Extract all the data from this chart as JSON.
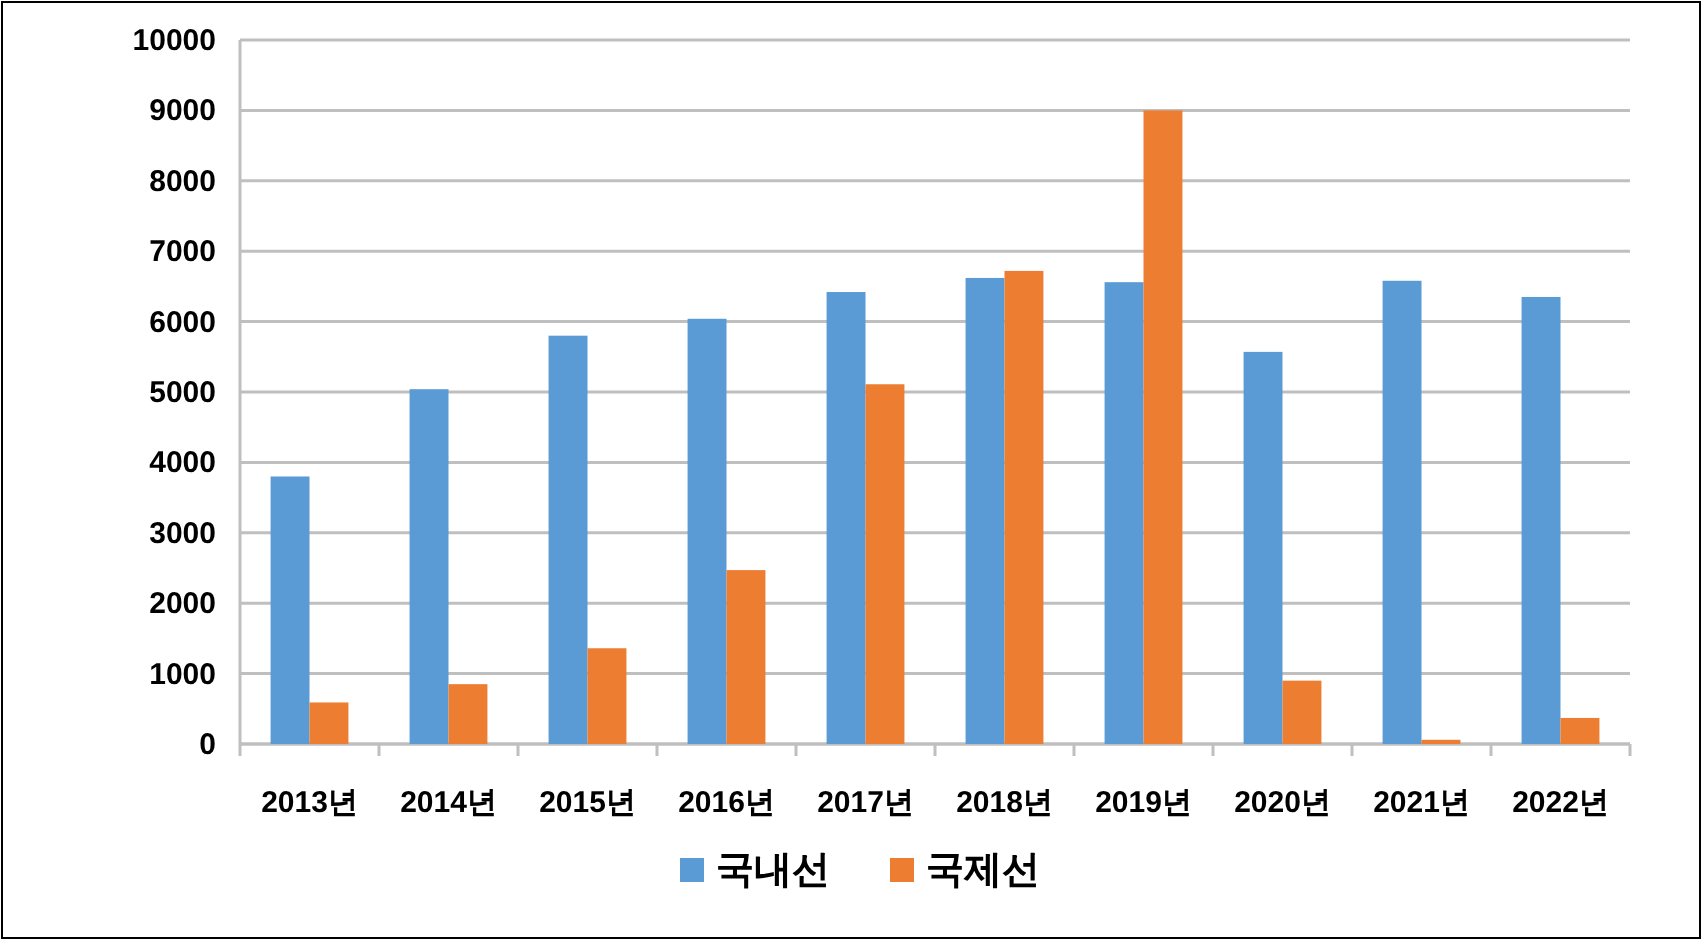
{
  "chart_data": {
    "type": "bar",
    "categories": [
      "2013년",
      "2014년",
      "2015년",
      "2016년",
      "2017년",
      "2018년",
      "2019년",
      "2020년",
      "2021년",
      "2022년"
    ],
    "series": [
      {
        "name": "국내선",
        "color": "#5b9bd5",
        "values": [
          3800,
          5040,
          5800,
          6040,
          6420,
          6620,
          6560,
          5570,
          6580,
          6350
        ]
      },
      {
        "name": "국제선",
        "color": "#ed7d31",
        "values": [
          590,
          850,
          1360,
          2470,
          5110,
          6720,
          9000,
          900,
          60,
          370
        ]
      }
    ],
    "ylim": [
      0,
      10000
    ],
    "yticks": [
      0,
      1000,
      2000,
      3000,
      4000,
      5000,
      6000,
      7000,
      8000,
      9000,
      10000
    ],
    "grid": "y",
    "legend": "bottom"
  }
}
